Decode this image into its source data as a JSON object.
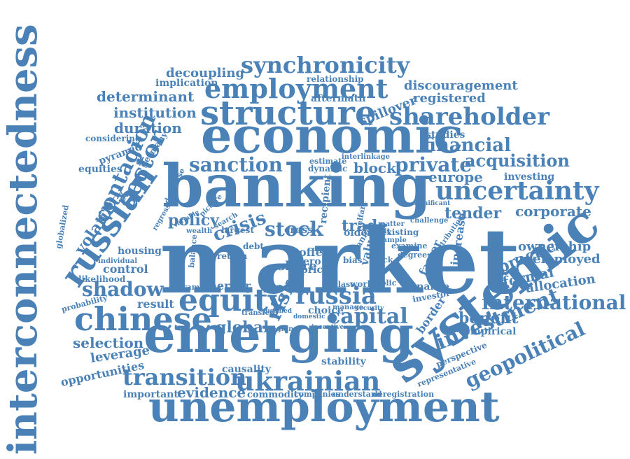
{
  "style": {
    "word_color": "#4a82b8",
    "background": "#ffffff"
  },
  "words": [
    "interconnectedness",
    "market",
    "banking",
    "economic",
    "emerging",
    "systemic",
    "unemployment",
    "structure",
    "employment",
    "ukrainian",
    "russian",
    "chinese",
    "equity",
    "uncertainty",
    "shareholder",
    "synchronicity",
    "international",
    "russia",
    "transition",
    "geopolitical",
    "investment",
    "capital",
    "sanction",
    "private",
    "financial",
    "acquisition",
    "sector",
    "contagion",
    "volatility",
    "shadow",
    "stock",
    "crisis",
    "risk",
    "determinant",
    "institution",
    "duration",
    "decoupling",
    "discouragement",
    "registered",
    "europe",
    "tender",
    "corporate",
    "practice",
    "ownership",
    "unemployed",
    "informal",
    "allocation",
    "benefit",
    "global",
    "selection",
    "leverage",
    "opportunities",
    "evidence",
    "important",
    "policy",
    "trade",
    "block",
    "implication",
    "spillover",
    "aftermath",
    "relationship",
    "studies",
    "investing",
    "control",
    "result",
    "offer",
    "choice",
    "stability",
    "causality",
    "commodity",
    "companies",
    "understand",
    "deregistration",
    "perspective",
    "representative",
    "empirical",
    "border",
    "increase",
    "factor",
    "finance",
    "investor",
    "paper",
    "merger",
    "dramatic",
    "equities",
    "germany",
    "pyramid",
    "considering",
    "likelihood",
    "probability",
    "housing",
    "globalized",
    "share",
    "price",
    "zero",
    "value",
    "estimate",
    "dynamic",
    "recipient",
    "welfare",
    "interlinkage",
    "challenge",
    "significant",
    "older",
    "effect",
    "existing",
    "sample",
    "cross",
    "largest",
    "debt",
    "return",
    "balance",
    "bias",
    "degree",
    "examine",
    "world",
    "class",
    "public",
    "manage",
    "security",
    "domestic",
    "incentive",
    "regional",
    "individual",
    "regression",
    "decrease",
    "contribution",
    "wealth",
    "variable",
    "picture",
    "search",
    "transfer",
    "justified",
    "matter",
    "black",
    "bank"
  ]
}
